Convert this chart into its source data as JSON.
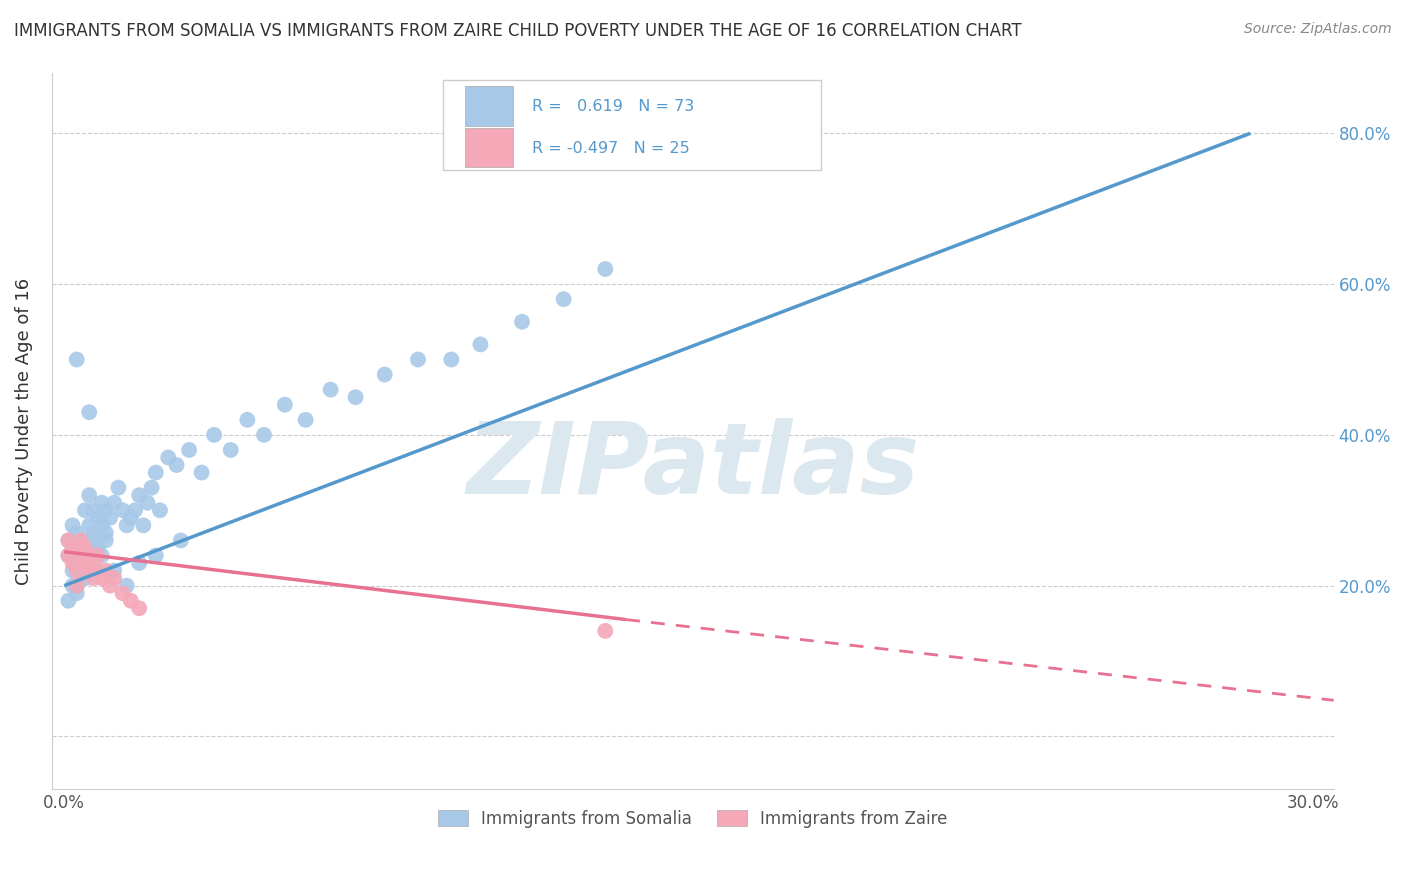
{
  "title": "IMMIGRANTS FROM SOMALIA VS IMMIGRANTS FROM ZAIRE CHILD POVERTY UNDER THE AGE OF 16 CORRELATION CHART",
  "source": "Source: ZipAtlas.com",
  "ylabel": "Child Poverty Under the Age of 16",
  "xlim": [
    -0.003,
    0.305
  ],
  "ylim": [
    -0.07,
    0.88
  ],
  "ytick_positions": [
    0.0,
    0.2,
    0.4,
    0.6,
    0.8
  ],
  "ytick_labels": [
    "",
    "20.0%",
    "40.0%",
    "60.0%",
    "80.0%"
  ],
  "xtick_positions": [
    0.0,
    0.05,
    0.1,
    0.15,
    0.2,
    0.25,
    0.3
  ],
  "xtick_labels": [
    "0.0%",
    "",
    "",
    "",
    "",
    "",
    "30.0%"
  ],
  "somalia_R": 0.619,
  "somalia_N": 73,
  "zaire_R": -0.497,
  "zaire_N": 25,
  "somalia_dot_color": "#a8c8e8",
  "somalia_line_color": "#5599cc",
  "zaire_dot_color": "#f4a8b8",
  "zaire_line_color": "#e87090",
  "watermark_text": "ZIPatlas",
  "watermark_color": "#dce8f0",
  "legend_label_somalia": "Immigrants from Somalia",
  "legend_label_zaire": "Immigrants from Zaire",
  "somalia_line_x0": 0.0,
  "somalia_line_y0": 0.2,
  "somalia_line_x1": 0.285,
  "somalia_line_y1": 0.8,
  "zaire_line_solid_x0": 0.0,
  "zaire_line_solid_y0": 0.245,
  "zaire_line_solid_x1": 0.135,
  "zaire_line_solid_y1": 0.155,
  "zaire_line_dash_x0": 0.135,
  "zaire_line_dash_y0": 0.155,
  "zaire_line_dash_x1": 0.305,
  "zaire_line_dash_y1": 0.048,
  "somalia_x": [
    0.001,
    0.001,
    0.002,
    0.002,
    0.002,
    0.003,
    0.003,
    0.003,
    0.004,
    0.004,
    0.005,
    0.005,
    0.005,
    0.006,
    0.006,
    0.006,
    0.007,
    0.007,
    0.008,
    0.008,
    0.009,
    0.009,
    0.01,
    0.01,
    0.011,
    0.012,
    0.013,
    0.014,
    0.015,
    0.016,
    0.017,
    0.018,
    0.019,
    0.02,
    0.021,
    0.022,
    0.023,
    0.025,
    0.027,
    0.03,
    0.033,
    0.036,
    0.04,
    0.044,
    0.048,
    0.053,
    0.058,
    0.064,
    0.07,
    0.077,
    0.085,
    0.093,
    0.1,
    0.11,
    0.12,
    0.13,
    0.001,
    0.002,
    0.003,
    0.004,
    0.005,
    0.006,
    0.007,
    0.008,
    0.009,
    0.01,
    0.012,
    0.015,
    0.018,
    0.022,
    0.028,
    0.003,
    0.006
  ],
  "somalia_y": [
    0.24,
    0.26,
    0.22,
    0.25,
    0.28,
    0.2,
    0.23,
    0.27,
    0.22,
    0.25,
    0.24,
    0.26,
    0.3,
    0.25,
    0.28,
    0.32,
    0.27,
    0.3,
    0.26,
    0.29,
    0.28,
    0.31,
    0.27,
    0.3,
    0.29,
    0.31,
    0.33,
    0.3,
    0.28,
    0.29,
    0.3,
    0.32,
    0.28,
    0.31,
    0.33,
    0.35,
    0.3,
    0.37,
    0.36,
    0.38,
    0.35,
    0.4,
    0.38,
    0.42,
    0.4,
    0.44,
    0.42,
    0.46,
    0.45,
    0.48,
    0.5,
    0.5,
    0.52,
    0.55,
    0.58,
    0.62,
    0.18,
    0.2,
    0.19,
    0.22,
    0.21,
    0.24,
    0.23,
    0.25,
    0.24,
    0.26,
    0.22,
    0.2,
    0.23,
    0.24,
    0.26,
    0.5,
    0.43
  ],
  "zaire_x": [
    0.001,
    0.001,
    0.002,
    0.002,
    0.003,
    0.003,
    0.004,
    0.004,
    0.005,
    0.005,
    0.006,
    0.006,
    0.007,
    0.007,
    0.008,
    0.008,
    0.009,
    0.01,
    0.011,
    0.012,
    0.014,
    0.016,
    0.018,
    0.13,
    0.003
  ],
  "zaire_y": [
    0.24,
    0.26,
    0.23,
    0.25,
    0.22,
    0.25,
    0.24,
    0.26,
    0.23,
    0.25,
    0.22,
    0.24,
    0.21,
    0.23,
    0.22,
    0.24,
    0.21,
    0.22,
    0.2,
    0.21,
    0.19,
    0.18,
    0.17,
    0.14,
    0.2
  ]
}
